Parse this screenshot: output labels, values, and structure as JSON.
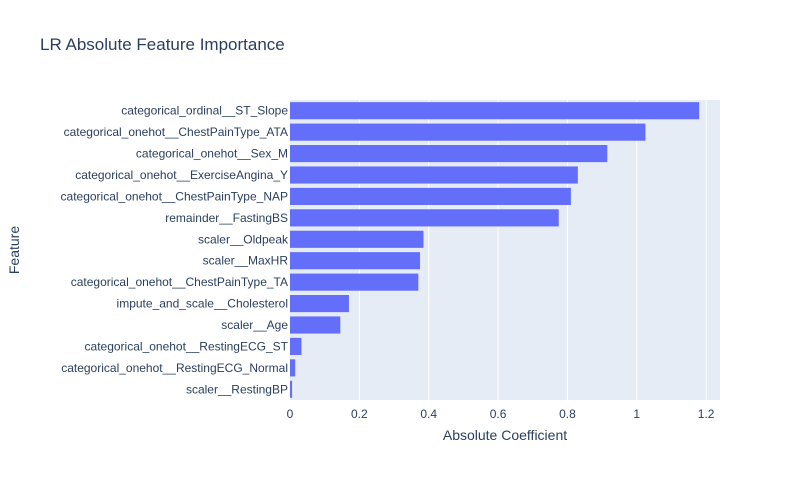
{
  "chart_data": {
    "type": "bar",
    "orientation": "horizontal",
    "title": "LR Absolute Feature Importance",
    "xlabel": "Absolute Coefficient",
    "ylabel": "Feature",
    "xlim": [
      0,
      1.24
    ],
    "xticks": [
      "0",
      "0.2",
      "0.4",
      "0.6",
      "0.8",
      "1",
      "1.2"
    ],
    "grid": true,
    "colors": {
      "bar": "#636efa",
      "plot_bg": "#e5ecf6",
      "grid": "#ffffff",
      "text": "#2a3f5f"
    },
    "categories": [
      "categorical_ordinal__ST_Slope",
      "categorical_onehot__ChestPainType_ATA",
      "categorical_onehot__Sex_M",
      "categorical_onehot__ExerciseAngina_Y",
      "categorical_onehot__ChestPainType_NAP",
      "remainder__FastingBS",
      "scaler__Oldpeak",
      "scaler__MaxHR",
      "categorical_onehot__ChestPainType_TA",
      "impute_and_scale__Cholesterol",
      "scaler__Age",
      "categorical_onehot__RestingECG_ST",
      "categorical_onehot__RestingECG_Normal",
      "scaler__RestingBP"
    ],
    "values": [
      1.18,
      1.025,
      0.915,
      0.83,
      0.81,
      0.775,
      0.385,
      0.375,
      0.37,
      0.17,
      0.145,
      0.033,
      0.015,
      0.006
    ]
  }
}
